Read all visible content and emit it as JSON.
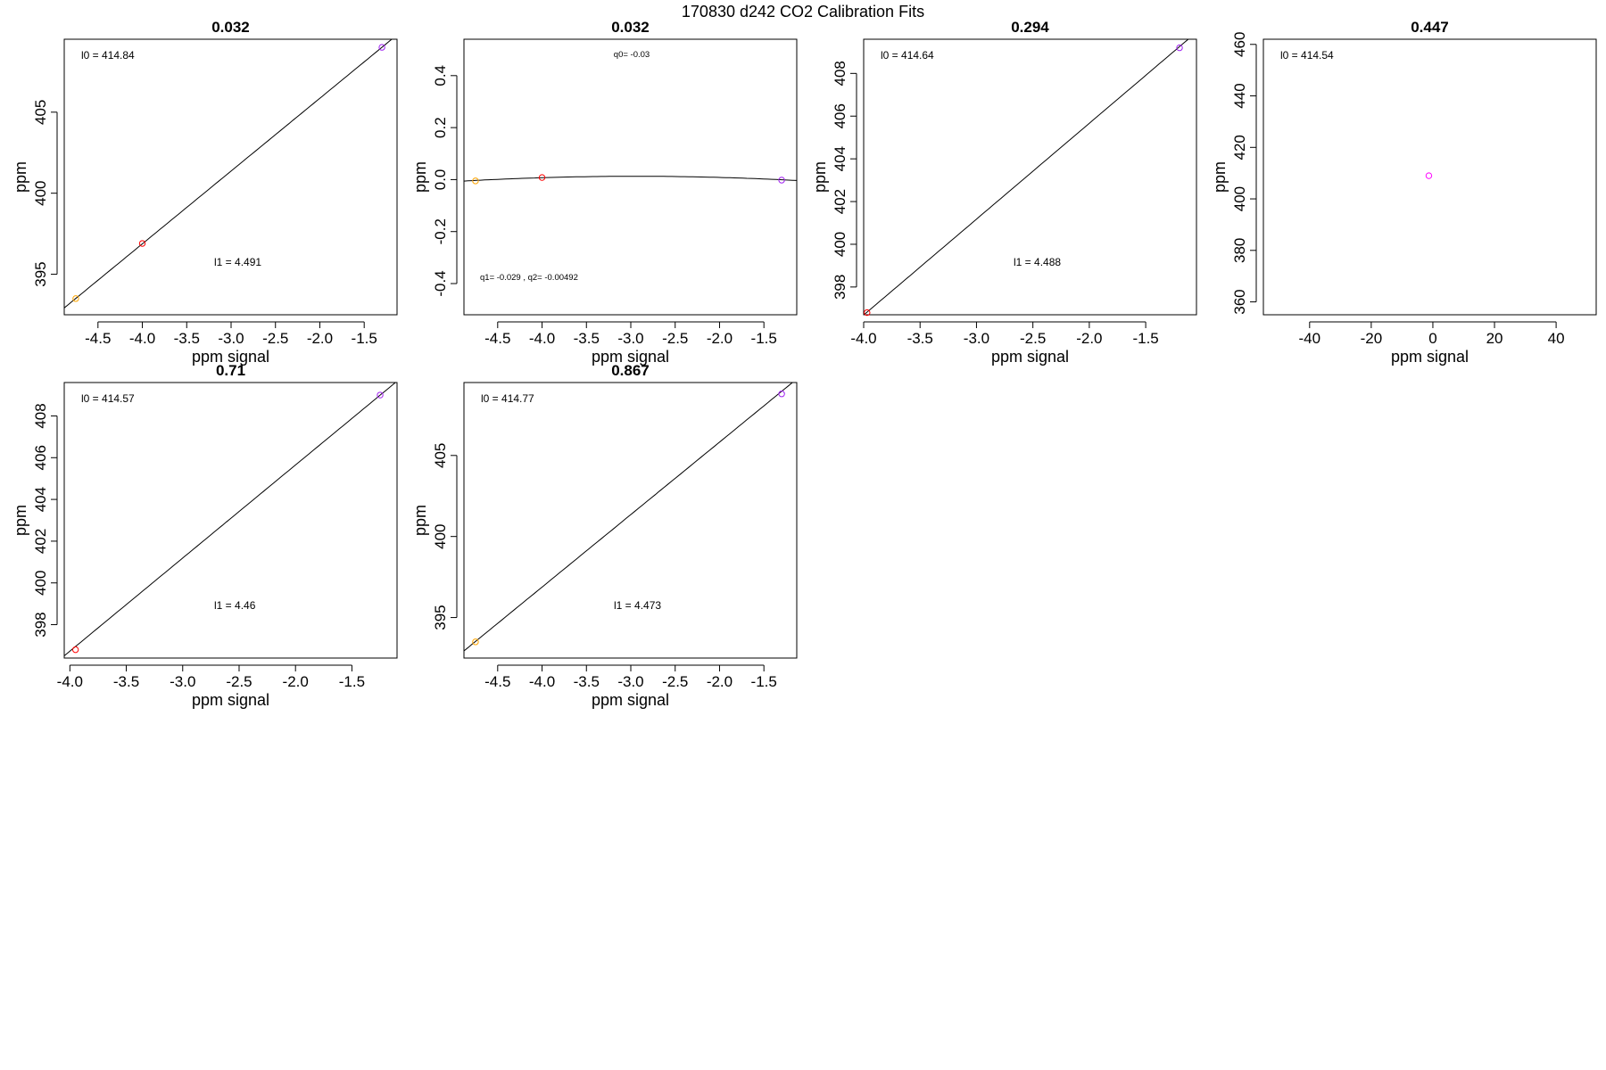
{
  "figure": {
    "title": "170830   d242   CO2 Calibration Fits"
  },
  "chart_data": [
    {
      "type": "scatter",
      "title": "0.032",
      "xlabel": "ppm signal",
      "ylabel": "ppm",
      "xlim": [
        -4.88,
        -1.13
      ],
      "ylim": [
        392.5,
        409.5
      ],
      "xticks": [
        -4.5,
        -4.0,
        -3.5,
        -3.0,
        -2.5,
        -2.0,
        -1.5
      ],
      "xtick_labels": [
        "-4.5",
        "-4.0",
        "-3.5",
        "-3.0",
        "-2.5",
        "-2.0",
        "-1.5"
      ],
      "yticks": [
        395,
        400,
        405
      ],
      "ytick_labels": [
        "395",
        "400",
        "405"
      ],
      "fit": {
        "kind": "linear",
        "l0": 414.84,
        "l1": 4.491
      },
      "annotations": [
        {
          "label": "l0 =  414.84",
          "pos": "top-left"
        },
        {
          "label": "l1 =  4.491",
          "pos": "lower-middle"
        }
      ],
      "points": [
        {
          "x": -4.75,
          "y": 393.5,
          "color": "#FFA500"
        },
        {
          "x": -4.0,
          "y": 396.9,
          "color": "#FF0000"
        },
        {
          "x": -1.3,
          "y": 409.0,
          "color": "#A020F0"
        }
      ]
    },
    {
      "type": "scatter",
      "title": "0.032",
      "xlabel": "ppm signal",
      "ylabel": "ppm",
      "xlim": [
        -4.88,
        -1.13
      ],
      "ylim": [
        -0.52,
        0.54
      ],
      "xticks": [
        -4.5,
        -4.0,
        -3.5,
        -3.0,
        -2.5,
        -2.0,
        -1.5
      ],
      "xtick_labels": [
        "-4.5",
        "-4.0",
        "-3.5",
        "-3.0",
        "-2.5",
        "-2.0",
        "-1.5"
      ],
      "yticks": [
        -0.4,
        -0.2,
        0.0,
        0.2,
        0.4
      ],
      "ytick_labels": [
        "-0.4",
        "-0.2",
        "0.0",
        "0.2",
        "0.4"
      ],
      "fit": {
        "kind": "quadratic",
        "q0": -0.03,
        "q1": -0.029,
        "q2": -0.00492
      },
      "annotations": [
        {
          "label": "q0= -0.03",
          "pos": "top-center"
        },
        {
          "label": "q1= -0.029 , q2= -0.00492",
          "pos": "bottom-left"
        }
      ],
      "points": [
        {
          "x": -4.75,
          "y": -0.005,
          "color": "#FFA500"
        },
        {
          "x": -4.0,
          "y": 0.008,
          "color": "#FF0000"
        },
        {
          "x": -1.3,
          "y": -0.002,
          "color": "#A020F0"
        }
      ]
    },
    {
      "type": "scatter",
      "title": "0.294",
      "xlabel": "ppm signal",
      "ylabel": "ppm",
      "xlim": [
        -4.0,
        -1.05
      ],
      "ylim": [
        396.7,
        409.6
      ],
      "xticks": [
        -4.0,
        -3.5,
        -3.0,
        -2.5,
        -2.0,
        -1.5
      ],
      "xtick_labels": [
        "-4.0",
        "-3.5",
        "-3.0",
        "-2.5",
        "-2.0",
        "-1.5"
      ],
      "yticks": [
        398,
        400,
        402,
        404,
        406,
        408
      ],
      "ytick_labels": [
        "398",
        "400",
        "402",
        "404",
        "406",
        "408"
      ],
      "fit": {
        "kind": "linear",
        "l0": 414.64,
        "l1": 4.488
      },
      "annotations": [
        {
          "label": "l0 =  414.64",
          "pos": "top-left"
        },
        {
          "label": "l1 =  4.488",
          "pos": "lower-middle"
        }
      ],
      "points": [
        {
          "x": -3.97,
          "y": 396.8,
          "color": "#FF0000"
        },
        {
          "x": -1.2,
          "y": 409.2,
          "color": "#A020F0"
        }
      ]
    },
    {
      "type": "scatter",
      "title": "0.447",
      "xlabel": "ppm signal",
      "ylabel": "ppm",
      "xlim": [
        -55,
        53
      ],
      "ylim": [
        355,
        462
      ],
      "xticks": [
        -40,
        -20,
        0,
        20,
        40
      ],
      "xtick_labels": [
        "-40",
        "-20",
        "0",
        "20",
        "40"
      ],
      "yticks": [
        360,
        380,
        400,
        420,
        440,
        460
      ],
      "ytick_labels": [
        "360",
        "380",
        "400",
        "420",
        "440",
        "460"
      ],
      "fit": {
        "kind": "none",
        "l0": 414.54
      },
      "annotations": [
        {
          "label": "l0 =  414.54",
          "pos": "top-left"
        }
      ],
      "points": [
        {
          "x": -1.3,
          "y": 409.0,
          "color": "#FF00FF"
        }
      ]
    },
    {
      "type": "scatter",
      "title": "0.71",
      "xlabel": "ppm signal",
      "ylabel": "ppm",
      "xlim": [
        -4.05,
        -1.1
      ],
      "ylim": [
        396.4,
        409.6
      ],
      "xticks": [
        -4.0,
        -3.5,
        -3.0,
        -2.5,
        -2.0,
        -1.5
      ],
      "xtick_labels": [
        "-4.0",
        "-3.5",
        "-3.0",
        "-2.5",
        "-2.0",
        "-1.5"
      ],
      "yticks": [
        398,
        400,
        402,
        404,
        406,
        408
      ],
      "ytick_labels": [
        "398",
        "400",
        "402",
        "404",
        "406",
        "408"
      ],
      "fit": {
        "kind": "linear",
        "l0": 414.57,
        "l1": 4.46
      },
      "annotations": [
        {
          "label": "l0 =  414.57",
          "pos": "top-left"
        },
        {
          "label": "l1 =  4.46",
          "pos": "lower-middle"
        }
      ],
      "points": [
        {
          "x": -3.95,
          "y": 396.8,
          "color": "#FF0000"
        },
        {
          "x": -1.25,
          "y": 409.0,
          "color": "#A020F0"
        }
      ]
    },
    {
      "type": "scatter",
      "title": "0.867",
      "xlabel": "ppm signal",
      "ylabel": "ppm",
      "xlim": [
        -4.88,
        -1.13
      ],
      "ylim": [
        392.5,
        409.5
      ],
      "xticks": [
        -4.5,
        -4.0,
        -3.5,
        -3.0,
        -2.5,
        -2.0,
        -1.5
      ],
      "xtick_labels": [
        "-4.5",
        "-4.0",
        "-3.5",
        "-3.0",
        "-2.5",
        "-2.0",
        "-1.5"
      ],
      "yticks": [
        395,
        400,
        405
      ],
      "ytick_labels": [
        "395",
        "400",
        "405"
      ],
      "fit": {
        "kind": "linear",
        "l0": 414.77,
        "l1": 4.473
      },
      "annotations": [
        {
          "label": "l0 =  414.77",
          "pos": "top-left"
        },
        {
          "label": "l1 =  4.473",
          "pos": "lower-middle"
        }
      ],
      "points": [
        {
          "x": -4.75,
          "y": 393.5,
          "color": "#FFA500"
        },
        {
          "x": -1.3,
          "y": 408.8,
          "color": "#A020F0"
        }
      ]
    }
  ]
}
